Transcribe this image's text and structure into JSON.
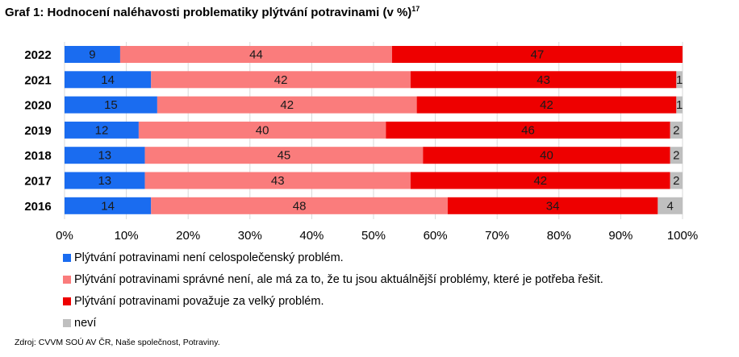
{
  "title": "Graf 1: Hodnocení naléhavosti problematiky plýtvání potravinami (v %)",
  "title_footnote": "17",
  "chart_data": {
    "type": "bar",
    "orientation": "horizontal",
    "stacked": true,
    "categories": [
      "2022",
      "2021",
      "2020",
      "2019",
      "2018",
      "2017",
      "2016"
    ],
    "series": [
      {
        "name": "Plýtvání potravinami není celospolečenský problém.",
        "color": "#1a6cf0",
        "values": [
          9,
          14,
          15,
          12,
          13,
          13,
          14
        ]
      },
      {
        "name": "Plýtvání potravinami správné není, ale má za to, že tu jsou aktuálnější problémy, které je potřeba řešit.",
        "color": "#fa7c7c",
        "values": [
          44,
          42,
          42,
          40,
          45,
          43,
          48
        ]
      },
      {
        "name": "Plýtvání potravinami považuje za velký problém.",
        "color": "#ee0000",
        "values": [
          47,
          43,
          42,
          46,
          40,
          42,
          34
        ]
      },
      {
        "name": "neví",
        "color": "#bfbfbf",
        "values": [
          null,
          1,
          1,
          2,
          2,
          2,
          4
        ]
      }
    ],
    "x_ticks": [
      "0%",
      "10%",
      "20%",
      "30%",
      "40%",
      "50%",
      "60%",
      "70%",
      "80%",
      "90%",
      "100%"
    ],
    "xlim": [
      0,
      100
    ],
    "grid": true,
    "legend_position": "bottom"
  },
  "source": "Zdroj: CVVM SOÚ AV ČR, Naše společnost, Potraviny."
}
